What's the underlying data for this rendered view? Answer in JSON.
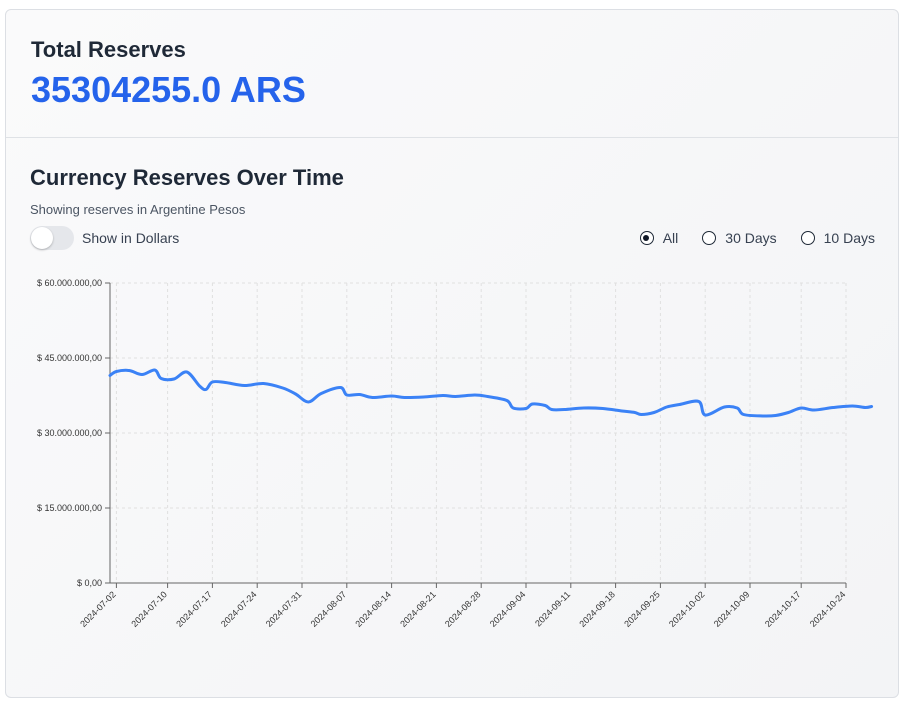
{
  "total": {
    "title": "Total Reserves",
    "value": "35304255.0 ARS"
  },
  "chart_header": {
    "title": "Currency Reserves Over Time",
    "subtitle": "Showing reserves in Argentine Pesos",
    "toggle_label": "Show in Dollars",
    "toggle_on": false
  },
  "range_options": [
    {
      "label": "All",
      "checked": true
    },
    {
      "label": "30 Days",
      "checked": false
    },
    {
      "label": "10 Days",
      "checked": false
    }
  ],
  "colors": {
    "line": "#3b82f6",
    "accent": "#2563eb",
    "grid": "#e0e0e0"
  },
  "chart_data": {
    "type": "line",
    "title": "",
    "xlabel": "",
    "ylabel": "",
    "ylim": [
      0,
      60000000
    ],
    "y_ticks": [
      0,
      15000000,
      30000000,
      45000000,
      60000000
    ],
    "y_tick_labels": [
      "$ 0,00",
      "$ 15.000.000,00",
      "$ 30.000.000,00",
      "$ 45.000.000,00",
      "$ 60.000.000,00"
    ],
    "x_start": "2024-07-01",
    "x_end": "2024-10-24",
    "x_ticks": [
      "2024-07-02",
      "2024-07-10",
      "2024-07-17",
      "2024-07-24",
      "2024-07-31",
      "2024-08-07",
      "2024-08-14",
      "2024-08-21",
      "2024-08-28",
      "2024-09-04",
      "2024-09-11",
      "2024-09-18",
      "2024-09-25",
      "2024-10-02",
      "2024-10-09",
      "2024-10-17",
      "2024-10-24"
    ],
    "grid": true,
    "series": [
      {
        "points": [
          [
            "2024-07-01",
            41500000
          ],
          [
            "2024-07-02",
            42300000
          ],
          [
            "2024-07-04",
            42500000
          ],
          [
            "2024-07-06",
            41700000
          ],
          [
            "2024-07-08",
            42600000
          ],
          [
            "2024-07-09",
            40900000
          ],
          [
            "2024-07-11",
            40800000
          ],
          [
            "2024-07-13",
            42200000
          ],
          [
            "2024-07-15",
            39400000
          ],
          [
            "2024-07-16",
            38700000
          ],
          [
            "2024-07-17",
            40200000
          ],
          [
            "2024-07-19",
            40100000
          ],
          [
            "2024-07-22",
            39500000
          ],
          [
            "2024-07-25",
            39900000
          ],
          [
            "2024-07-28",
            39000000
          ],
          [
            "2024-07-30",
            37800000
          ],
          [
            "2024-08-01",
            36200000
          ],
          [
            "2024-08-03",
            37900000
          ],
          [
            "2024-08-06",
            39100000
          ],
          [
            "2024-08-07",
            37600000
          ],
          [
            "2024-08-09",
            37700000
          ],
          [
            "2024-08-11",
            37100000
          ],
          [
            "2024-08-14",
            37400000
          ],
          [
            "2024-08-16",
            37100000
          ],
          [
            "2024-08-19",
            37200000
          ],
          [
            "2024-08-22",
            37500000
          ],
          [
            "2024-08-24",
            37300000
          ],
          [
            "2024-08-27",
            37600000
          ],
          [
            "2024-08-29",
            37300000
          ],
          [
            "2024-09-01",
            36500000
          ],
          [
            "2024-09-02",
            35000000
          ],
          [
            "2024-09-04",
            34900000
          ],
          [
            "2024-09-05",
            35800000
          ],
          [
            "2024-09-07",
            35500000
          ],
          [
            "2024-09-08",
            34700000
          ],
          [
            "2024-09-10",
            34700000
          ],
          [
            "2024-09-13",
            35000000
          ],
          [
            "2024-09-16",
            34900000
          ],
          [
            "2024-09-19",
            34400000
          ],
          [
            "2024-09-21",
            34100000
          ],
          [
            "2024-09-22",
            33700000
          ],
          [
            "2024-09-24",
            34100000
          ],
          [
            "2024-09-26",
            35200000
          ],
          [
            "2024-09-28",
            35700000
          ],
          [
            "2024-10-01",
            36300000
          ],
          [
            "2024-10-02",
            33600000
          ],
          [
            "2024-10-05",
            35200000
          ],
          [
            "2024-10-07",
            35000000
          ],
          [
            "2024-10-08",
            33700000
          ],
          [
            "2024-10-11",
            33400000
          ],
          [
            "2024-10-13",
            33500000
          ],
          [
            "2024-10-15",
            34100000
          ],
          [
            "2024-10-17",
            35000000
          ],
          [
            "2024-10-19",
            34600000
          ],
          [
            "2024-10-22",
            35100000
          ],
          [
            "2024-10-25",
            35400000
          ],
          [
            "2024-10-27",
            35100000
          ],
          [
            "2024-10-28",
            35300000
          ]
        ]
      }
    ]
  }
}
